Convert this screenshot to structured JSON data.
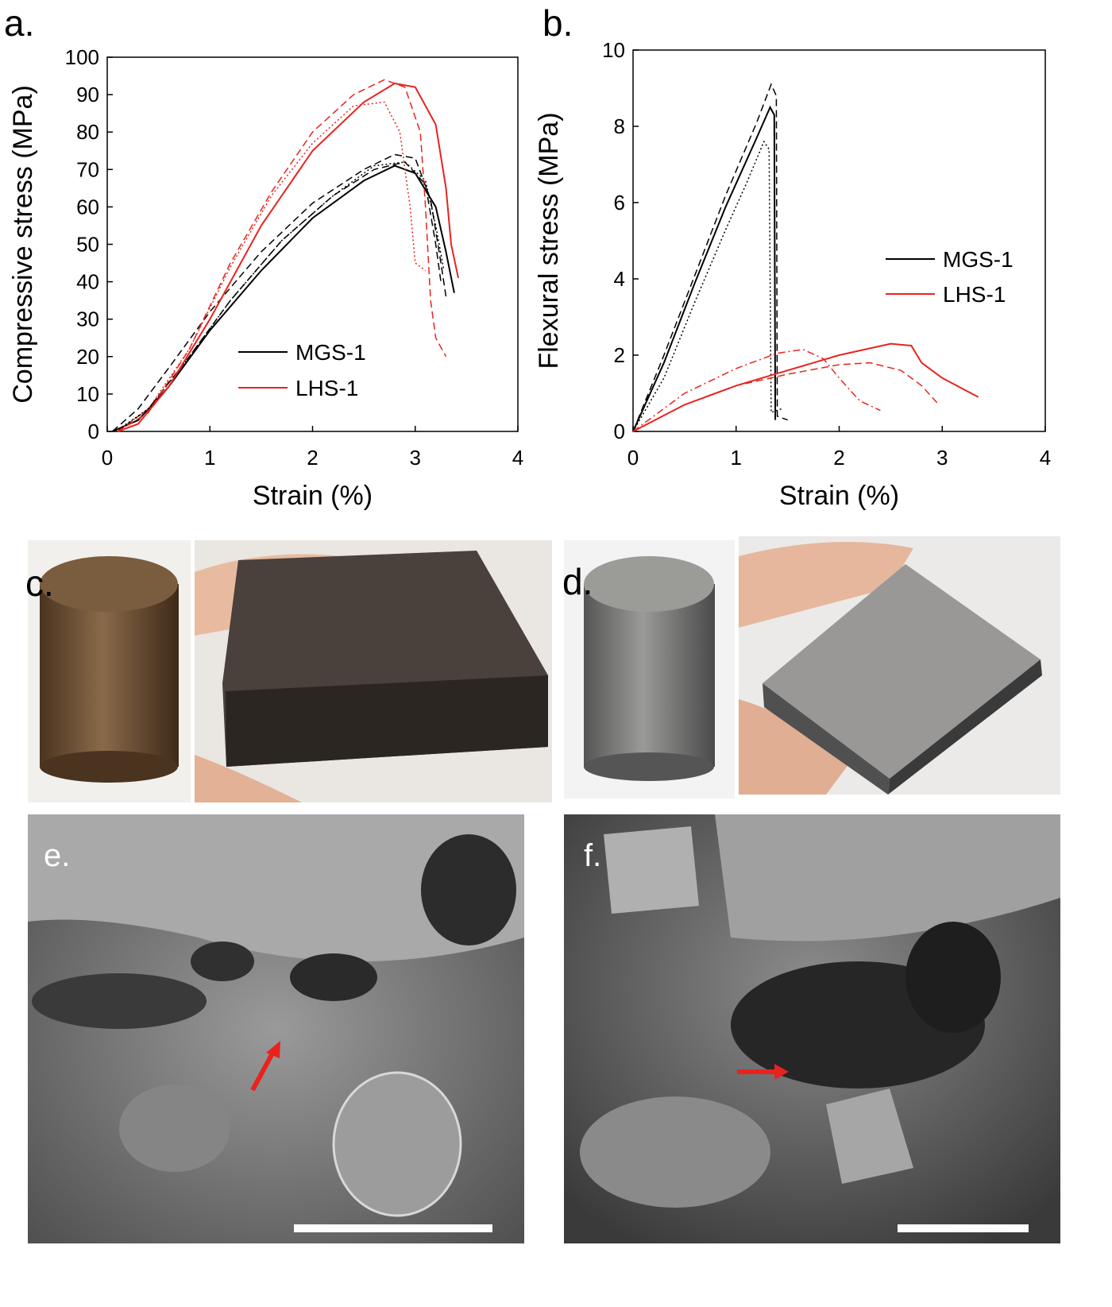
{
  "chart_data": [
    {
      "type": "line",
      "panel": "a.",
      "xlabel": "Strain (%)",
      "ylabel": "Compressive stress (MPa)",
      "xlim": [
        0,
        4
      ],
      "xticks": [
        0,
        1,
        2,
        3,
        4
      ],
      "ylim": [
        0,
        100
      ],
      "yticks": [
        0,
        10,
        20,
        30,
        40,
        50,
        60,
        70,
        80,
        90,
        100
      ],
      "series": [
        {
          "name": "MGS-1",
          "color": "#000000",
          "curves": [
            {
              "style": "solid",
              "x": [
                0.05,
                0.3,
                0.6,
                1,
                1.5,
                2,
                2.5,
                2.8,
                3,
                3.2,
                3.3,
                3.38
              ],
              "values": [
                0,
                3,
                12,
                27,
                43,
                57,
                67,
                71,
                69,
                60,
                48,
                37
              ]
            },
            {
              "style": "dashed",
              "x": [
                0.05,
                0.3,
                0.6,
                1,
                1.5,
                2,
                2.5,
                2.8,
                3.0,
                3.15,
                3.25,
                3.3
              ],
              "values": [
                0,
                6,
                17,
                32,
                48,
                61,
                70,
                74,
                73,
                62,
                45,
                36
              ]
            },
            {
              "style": "dashed",
              "x": [
                0.1,
                0.4,
                0.8,
                1.2,
                1.7,
                2.2,
                2.6,
                2.9,
                3.1,
                3.2,
                3.25
              ],
              "values": [
                0,
                6,
                20,
                35,
                51,
                63,
                70,
                72,
                66,
                50,
                40
              ]
            },
            {
              "style": "dotted",
              "x": [
                0.08,
                0.4,
                0.8,
                1.2,
                1.7,
                2.2,
                2.6,
                2.9,
                3.1,
                3.2,
                3.28
              ],
              "values": [
                0,
                6,
                20,
                35,
                51,
                63,
                71,
                72,
                67,
                55,
                43
              ]
            }
          ]
        },
        {
          "name": "LHS-1",
          "color": "#e8231f",
          "curves": [
            {
              "style": "solid",
              "x": [
                0.1,
                0.3,
                0.6,
                1,
                1.5,
                2,
                2.5,
                2.8,
                3.0,
                3.2,
                3.3,
                3.35,
                3.42
              ],
              "values": [
                0,
                2,
                12,
                30,
                55,
                75,
                88,
                93,
                92,
                82,
                65,
                50,
                41
              ]
            },
            {
              "style": "dashed",
              "x": [
                0.1,
                0.4,
                0.8,
                1.2,
                1.6,
                2,
                2.4,
                2.7,
                2.9,
                3.05,
                3.1,
                3.15,
                3.2,
                3.3
              ],
              "values": [
                0,
                5,
                22,
                45,
                64,
                80,
                90,
                94,
                92,
                80,
                60,
                35,
                25,
                20
              ]
            },
            {
              "style": "dotted",
              "x": [
                0.1,
                0.4,
                0.8,
                1.2,
                1.6,
                2,
                2.4,
                2.7,
                2.85,
                2.95,
                3.0,
                3.1
              ],
              "values": [
                0,
                6,
                22,
                44,
                63,
                77,
                87,
                88,
                80,
                60,
                45,
                43
              ]
            }
          ]
        }
      ]
    },
    {
      "type": "line",
      "panel": "b.",
      "xlabel": "Strain (%)",
      "ylabel": "Flexural stress (MPa)",
      "xlim": [
        0,
        4
      ],
      "xticks": [
        0,
        1,
        2,
        3,
        4
      ],
      "ylim": [
        0,
        10
      ],
      "yticks": [
        0,
        2,
        4,
        6,
        8,
        10
      ],
      "series": [
        {
          "name": "MGS-1",
          "color": "#000000",
          "curves": [
            {
              "style": "solid",
              "x": [
                0,
                0.3,
                0.6,
                0.9,
                1.2,
                1.33,
                1.37,
                1.38
              ],
              "values": [
                0,
                1.8,
                3.9,
                5.9,
                7.7,
                8.5,
                8.3,
                0.3
              ]
            },
            {
              "style": "dashed",
              "x": [
                0,
                0.3,
                0.6,
                0.9,
                1.2,
                1.34,
                1.39,
                1.4,
                1.5
              ],
              "values": [
                0,
                2,
                4.1,
                6.2,
                8.1,
                9.1,
                8.8,
                0.4,
                0.3
              ]
            },
            {
              "style": "dotted",
              "x": [
                0,
                0.3,
                0.6,
                0.9,
                1.1,
                1.27,
                1.32,
                1.34,
                1.45
              ],
              "values": [
                0,
                1.4,
                3.4,
                5.3,
                6.5,
                7.6,
                7.4,
                0.5,
                0.6
              ]
            }
          ]
        },
        {
          "name": "LHS-1",
          "color": "#e8231f",
          "curves": [
            {
              "style": "solid",
              "x": [
                0,
                0.5,
                1,
                1.5,
                2,
                2.5,
                2.7,
                2.8,
                3,
                3.35
              ],
              "values": [
                0,
                0.7,
                1.2,
                1.6,
                2.0,
                2.3,
                2.25,
                1.8,
                1.4,
                0.9
              ]
            },
            {
              "style": "dashed",
              "x": [
                0,
                0.5,
                1,
                1.5,
                2,
                2.3,
                2.6,
                2.8,
                2.95
              ],
              "values": [
                0,
                0.7,
                1.2,
                1.5,
                1.75,
                1.8,
                1.6,
                1.2,
                0.75
              ]
            },
            {
              "style": "dashdot",
              "x": [
                0,
                0.5,
                1,
                1.4,
                1.65,
                1.85,
                2,
                2.2,
                2.4
              ],
              "values": [
                0,
                1.0,
                1.65,
                2.05,
                2.15,
                1.9,
                1.4,
                0.8,
                0.55
              ]
            }
          ]
        }
      ]
    }
  ],
  "figure_labels": [
    "c.",
    "d.",
    "e.",
    "f."
  ]
}
